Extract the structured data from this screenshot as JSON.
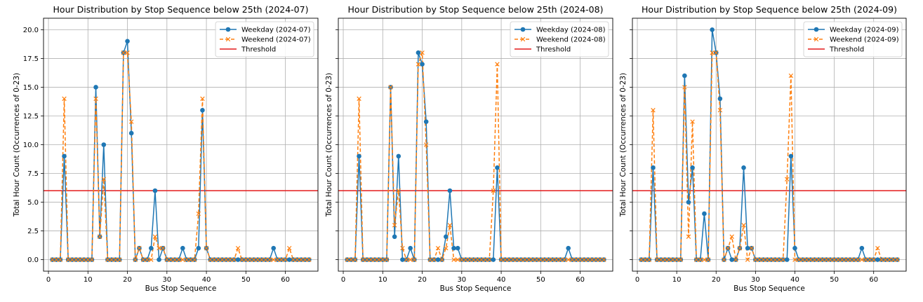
{
  "chart_data": [
    {
      "type": "line",
      "title": "Hour Distribution by Stop Sequence below 25th (2024-07)",
      "xlabel": "Bus Stop Sequence",
      "ylabel": "Total Hour Count (Occurrences of 0-23)",
      "xlim": [
        -1.25,
        68.25
      ],
      "ylim": [
        -1.0,
        21.0
      ],
      "xticks": [
        "0",
        "10",
        "20",
        "30",
        "40",
        "50",
        "60"
      ],
      "yticks": [
        "0.0",
        "2.5",
        "5.0",
        "7.5",
        "10.0",
        "12.5",
        "15.0",
        "17.5",
        "20.0"
      ],
      "grid": true,
      "legend_position": "top-right",
      "threshold": 6,
      "x": [
        1,
        2,
        3,
        4,
        5,
        6,
        7,
        8,
        9,
        10,
        11,
        12,
        13,
        14,
        15,
        16,
        17,
        18,
        19,
        20,
        21,
        22,
        23,
        24,
        25,
        26,
        27,
        28,
        29,
        30,
        31,
        32,
        33,
        34,
        35,
        36,
        37,
        38,
        39,
        40,
        41,
        42,
        43,
        44,
        45,
        46,
        47,
        48,
        49,
        50,
        51,
        52,
        53,
        54,
        55,
        56,
        57,
        58,
        59,
        60,
        61,
        62,
        63,
        64,
        65,
        66
      ],
      "series": [
        {
          "name": "Weekday (2024-07)",
          "values": [
            0,
            0,
            0,
            9,
            0,
            0,
            0,
            0,
            0,
            0,
            0,
            15,
            2,
            10,
            0,
            0,
            0,
            0,
            18,
            19,
            11,
            0,
            1,
            0,
            0,
            1,
            6,
            0,
            1,
            0,
            0,
            0,
            0,
            1,
            0,
            0,
            0,
            1,
            13,
            1,
            0,
            0,
            0,
            0,
            0,
            0,
            0,
            0,
            0,
            0,
            0,
            0,
            0,
            0,
            0,
            0,
            1,
            0,
            0,
            0,
            0,
            0,
            0,
            0,
            0,
            0
          ]
        },
        {
          "name": "Weekend (2024-07)",
          "values": [
            0,
            0,
            0,
            14,
            0,
            0,
            0,
            0,
            0,
            0,
            0,
            14,
            2,
            7,
            0,
            0,
            0,
            0,
            18,
            18,
            12,
            0,
            1,
            0,
            0,
            0,
            2,
            1,
            1,
            0,
            0,
            0,
            0,
            0,
            0,
            0,
            0,
            4,
            14,
            1,
            0,
            0,
            0,
            0,
            0,
            0,
            0,
            1,
            0,
            0,
            0,
            0,
            0,
            0,
            0,
            0,
            0,
            0,
            0,
            0,
            1,
            0,
            0,
            0,
            0,
            0
          ]
        },
        {
          "name": "Threshold"
        }
      ]
    },
    {
      "type": "line",
      "title": "Hour Distribution by Stop Sequence below 25th (2024-08)",
      "xlabel": "Bus Stop Sequence",
      "ylabel": "Total Hour Count (Occurrences of 0-23)",
      "xlim": [
        -1.25,
        68.25
      ],
      "ylim": [
        -1.0,
        21.0
      ],
      "xticks": [
        "0",
        "10",
        "20",
        "30",
        "40",
        "50",
        "60"
      ],
      "yticks": [
        "0.0",
        "2.5",
        "5.0",
        "7.5",
        "10.0",
        "12.5",
        "15.0",
        "17.5",
        "20.0"
      ],
      "grid": true,
      "legend_position": "top-right",
      "threshold": 6,
      "x": [
        1,
        2,
        3,
        4,
        5,
        6,
        7,
        8,
        9,
        10,
        11,
        12,
        13,
        14,
        15,
        16,
        17,
        18,
        19,
        20,
        21,
        22,
        23,
        24,
        25,
        26,
        27,
        28,
        29,
        30,
        31,
        32,
        33,
        34,
        35,
        36,
        37,
        38,
        39,
        40,
        41,
        42,
        43,
        44,
        45,
        46,
        47,
        48,
        49,
        50,
        51,
        52,
        53,
        54,
        55,
        56,
        57,
        58,
        59,
        60,
        61,
        62,
        63,
        64,
        65,
        66
      ],
      "series": [
        {
          "name": "Weekday (2024-08)",
          "values": [
            0,
            0,
            0,
            9,
            0,
            0,
            0,
            0,
            0,
            0,
            0,
            15,
            2,
            9,
            0,
            0,
            1,
            0,
            18,
            17,
            12,
            0,
            0,
            0,
            0,
            2,
            6,
            1,
            1,
            0,
            0,
            0,
            0,
            0,
            0,
            0,
            0,
            0,
            8,
            0,
            0,
            0,
            0,
            0,
            0,
            0,
            0,
            0,
            0,
            0,
            0,
            0,
            0,
            0,
            0,
            0,
            1,
            0,
            0,
            0,
            0,
            0,
            0,
            0,
            0,
            0
          ]
        },
        {
          "name": "Weekend (2024-08)",
          "values": [
            0,
            0,
            0,
            14,
            0,
            0,
            0,
            0,
            0,
            0,
            0,
            15,
            3,
            6,
            1,
            0,
            0,
            0,
            17,
            18,
            10,
            0,
            0,
            1,
            0,
            1,
            3,
            0,
            0,
            0,
            0,
            0,
            0,
            0,
            0,
            0,
            0,
            6,
            17,
            0,
            0,
            0,
            0,
            0,
            0,
            0,
            0,
            0,
            0,
            0,
            0,
            0,
            0,
            0,
            0,
            0,
            0,
            0,
            0,
            0,
            0,
            0,
            0,
            0,
            0,
            0
          ]
        },
        {
          "name": "Threshold"
        }
      ]
    },
    {
      "type": "line",
      "title": "Hour Distribution by Stop Sequence below 25th (2024-09)",
      "xlabel": "Bus Stop Sequence",
      "ylabel": "Total Hour Count (Occurrences of 0-23)",
      "xlim": [
        -1.25,
        68.25
      ],
      "ylim": [
        -1.0,
        21.0
      ],
      "xticks": [
        "0",
        "10",
        "20",
        "30",
        "40",
        "50",
        "60"
      ],
      "yticks": [
        "0.0",
        "2.5",
        "5.0",
        "7.5",
        "10.0",
        "12.5",
        "15.0",
        "17.5",
        "20.0"
      ],
      "grid": true,
      "legend_position": "top-right",
      "threshold": 6,
      "x": [
        1,
        2,
        3,
        4,
        5,
        6,
        7,
        8,
        9,
        10,
        11,
        12,
        13,
        14,
        15,
        16,
        17,
        18,
        19,
        20,
        21,
        22,
        23,
        24,
        25,
        26,
        27,
        28,
        29,
        30,
        31,
        32,
        33,
        34,
        35,
        36,
        37,
        38,
        39,
        40,
        41,
        42,
        43,
        44,
        45,
        46,
        47,
        48,
        49,
        50,
        51,
        52,
        53,
        54,
        55,
        56,
        57,
        58,
        59,
        60,
        61,
        62,
        63,
        64,
        65,
        66
      ],
      "series": [
        {
          "name": "Weekday (2024-09)",
          "values": [
            0,
            0,
            0,
            8,
            0,
            0,
            0,
            0,
            0,
            0,
            0,
            16,
            5,
            8,
            0,
            0,
            4,
            0,
            20,
            18,
            14,
            0,
            1,
            0,
            0,
            1,
            8,
            1,
            1,
            0,
            0,
            0,
            0,
            0,
            0,
            0,
            0,
            0,
            9,
            1,
            0,
            0,
            0,
            0,
            0,
            0,
            0,
            0,
            0,
            0,
            0,
            0,
            0,
            0,
            0,
            0,
            1,
            0,
            0,
            0,
            0,
            0,
            0,
            0,
            0,
            0
          ]
        },
        {
          "name": "Weekend (2024-09)",
          "values": [
            0,
            0,
            0,
            13,
            0,
            0,
            0,
            0,
            0,
            0,
            0,
            15,
            2,
            12,
            0,
            0,
            0,
            0,
            18,
            18,
            13,
            0,
            1,
            2,
            0,
            1,
            3,
            0,
            1,
            0,
            0,
            0,
            0,
            0,
            0,
            0,
            0,
            7,
            16,
            0,
            0,
            0,
            0,
            0,
            0,
            0,
            0,
            0,
            0,
            0,
            0,
            0,
            0,
            0,
            0,
            0,
            0,
            0,
            0,
            0,
            1,
            0,
            0,
            0,
            0,
            0
          ]
        },
        {
          "name": "Threshold"
        }
      ]
    }
  ],
  "colors": {
    "weekday": "#1f77b4",
    "weekend": "#ff7f0e",
    "threshold": "#e41a1c",
    "grid": "#b0b0b0"
  }
}
